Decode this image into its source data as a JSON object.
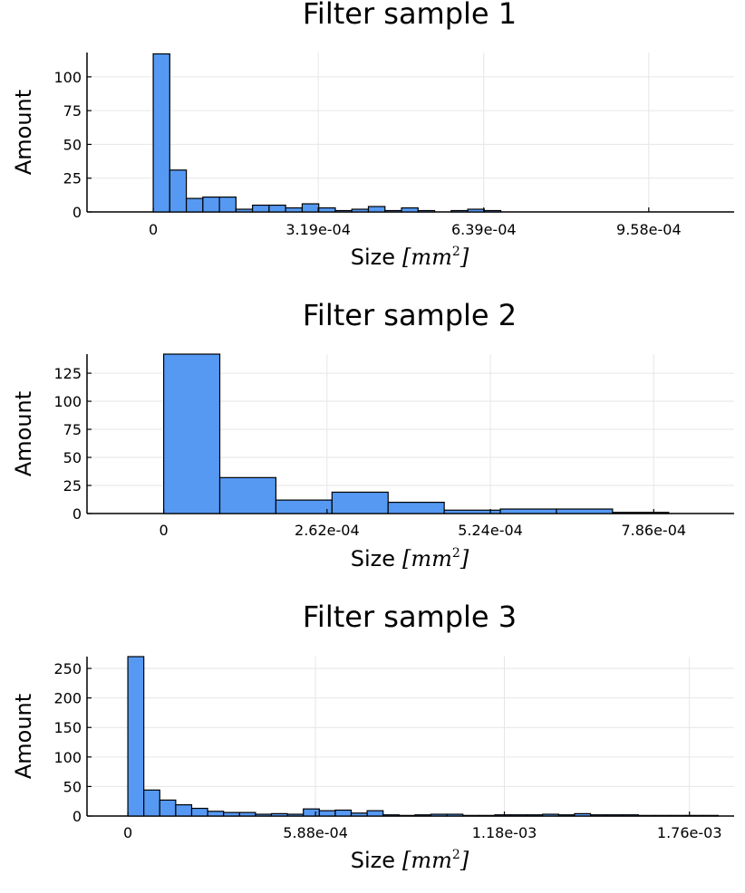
{
  "style": {
    "bar_color": "#5599f3",
    "grid": true
  },
  "chart_data": [
    {
      "type": "bar",
      "title": "Filter sample 1",
      "xlabel": "Size",
      "xlabel_unit": "[mm",
      "xlabel_unit_exp": "2",
      "xlabel_unit_close": "]",
      "ylabel": "Amount",
      "bin_width": 3.2e-05,
      "xlim": [
        -0.000128,
        0.001123
      ],
      "ylim": [
        0,
        118
      ],
      "x_ticks": [
        0,
        0.000319,
        0.000639,
        0.000958
      ],
      "x_tick_labels": [
        "0",
        "3.19e-04",
        "6.39e-04",
        "9.58e-04"
      ],
      "y_ticks": [
        0,
        25,
        50,
        75,
        100
      ],
      "y_tick_labels": [
        "0",
        "25",
        "50",
        "75",
        "100"
      ],
      "values": [
        117,
        31,
        10,
        11,
        11,
        2,
        5,
        5,
        3,
        6,
        3,
        1,
        2,
        4,
        1,
        3,
        1,
        0,
        1,
        2,
        1
      ]
    },
    {
      "type": "bar",
      "title": "Filter sample 2",
      "xlabel": "Size",
      "xlabel_unit": "[mm",
      "xlabel_unit_exp": "2",
      "xlabel_unit_close": "]",
      "ylabel": "Amount",
      "bin_width": 9e-05,
      "xlim": [
        -0.000123,
        0.000915
      ],
      "ylim": [
        0,
        142
      ],
      "x_ticks": [
        0,
        0.000262,
        0.000524,
        0.000786
      ],
      "x_tick_labels": [
        "0",
        "2.62e-04",
        "5.24e-04",
        "7.86e-04"
      ],
      "y_ticks": [
        0,
        25,
        50,
        75,
        100,
        125
      ],
      "y_tick_labels": [
        "0",
        "25",
        "50",
        "75",
        "100",
        "125"
      ],
      "values": [
        142,
        32,
        12,
        19,
        10,
        3,
        4,
        4,
        1
      ]
    },
    {
      "type": "bar",
      "title": "Filter sample 3",
      "xlabel": "Size",
      "xlabel_unit": "[mm",
      "xlabel_unit_exp": "2",
      "xlabel_unit_close": "]",
      "ylabel": "Amount",
      "bin_width": 5e-05,
      "xlim": [
        -0.000128,
        0.0019
      ],
      "ylim": [
        0,
        270
      ],
      "x_ticks": [
        0,
        0.000588,
        0.00118,
        0.00176
      ],
      "x_tick_labels": [
        "0",
        "5.88e-04",
        "1.18e-03",
        "1.76e-03"
      ],
      "y_ticks": [
        0,
        50,
        100,
        150,
        200,
        250
      ],
      "y_tick_labels": [
        "0",
        "50",
        "100",
        "150",
        "200",
        "250"
      ],
      "values": [
        270,
        44,
        27,
        19,
        13,
        8,
        6,
        6,
        3,
        4,
        3,
        12,
        9,
        10,
        5,
        9,
        2,
        1,
        2,
        3,
        3,
        1,
        1,
        2,
        2,
        2,
        3,
        2,
        4,
        2,
        2,
        2,
        1,
        1,
        1,
        1,
        1
      ]
    }
  ]
}
